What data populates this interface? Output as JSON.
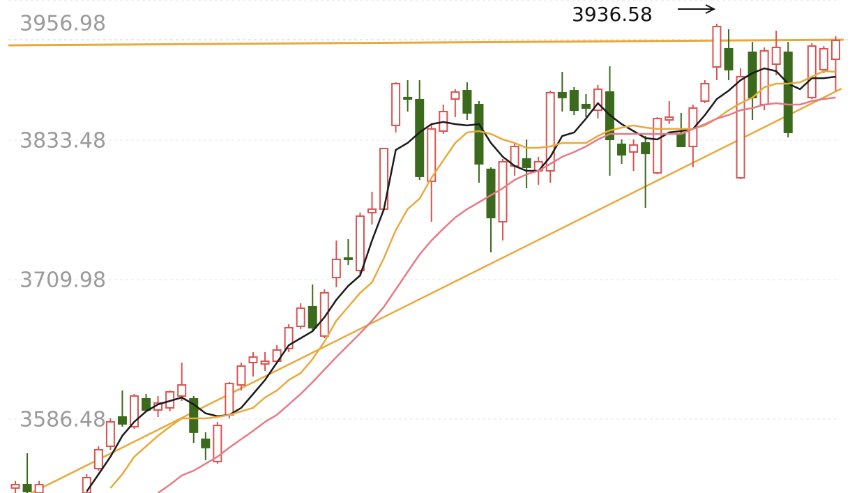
{
  "chart_data": {
    "type": "candlestick",
    "categories": [
      null,
      null,
      null,
      null,
      null,
      null,
      null,
      null,
      null,
      null,
      null,
      null,
      null,
      null,
      null,
      null,
      null,
      null,
      null,
      null,
      null,
      null,
      null,
      null,
      null,
      null,
      null,
      null,
      null,
      null,
      null,
      null,
      null,
      null,
      null,
      null,
      null,
      null,
      null,
      null,
      null,
      null,
      null,
      null,
      null,
      null,
      null,
      null,
      null,
      null,
      null,
      null,
      null,
      null,
      null,
      null,
      null,
      null,
      null,
      null,
      null,
      null,
      null,
      null,
      null,
      null,
      null,
      null,
      null,
      null
    ],
    "open": [
      3525.4,
      3528.4,
      3521.0,
      null,
      null,
      null,
      3521.0,
      3542.6,
      3562.4,
      3588.3,
      3579.7,
      3604.4,
      3594.5,
      3596.4,
      3606.9,
      3604.4,
      3568.6,
      3548.8,
      3590.2,
      3616.7,
      3636.5,
      3635.3,
      3637.7,
      3648.9,
      3668.6,
      3685.9,
      3660.0,
      3711.8,
      3729.1,
      3718.0,
      3769.3,
      3772.4,
      3846.5,
      3871.2,
      3869.3,
      3797.1,
      3841.5,
      3869.9,
      3877.3,
      3865.0,
      3807.6,
      3761.2,
      3810.6,
      3816.8,
      3806.3,
      3806.3,
      3875.5,
      3877.3,
      3865.0,
      3860.0,
      3876.1,
      3829.8,
      3823.0,
      3831.0,
      3804.5,
      3851.4,
      3839.0,
      3827.9,
      3868.1,
      3898.3,
      3914.4,
      3800.1,
      3911.3,
      3865.0,
      3900.8,
      3911.3,
      null,
      3871.2,
      3895.9,
      3905.1
    ],
    "high": [
      3531.5,
      3556.2,
      3531.5,
      null,
      null,
      null,
      3537.7,
      3562.4,
      3587.1,
      3611.8,
      3608.7,
      3608.7,
      3606.9,
      3611.8,
      3636.5,
      3606.9,
      3574.8,
      3584.0,
      3619.2,
      3636.5,
      3645.8,
      3645.8,
      3651.9,
      3670.5,
      3689.0,
      3705.7,
      3701.3,
      3744.6,
      3745.8,
      3769.3,
      3787.8,
      3826.7,
      3884.7,
      3886.6,
      3886.6,
      3846.5,
      3865.0,
      3878.6,
      3884.7,
      3868.1,
      3809.4,
      3816.8,
      3831.0,
      3834.1,
      3818.7,
      3877.3,
      3894.0,
      3880.4,
      3874.2,
      3882.3,
      3898.9,
      3834.1,
      3834.1,
      3837.2,
      3853.9,
      3868.1,
      3857.6,
      3865.0,
      3886.6,
      3936.58,
      3931.7,
      3897.1,
      3920.5,
      3915.6,
      3930.4,
      3920.5,
      null,
      3919.3,
      3916.8,
      3925.5
    ],
    "low": [
      3521.0,
      3521.0,
      3521.0,
      null,
      null,
      null,
      3521.0,
      3540.8,
      3559.3,
      3579.7,
      3577.8,
      3593.3,
      3588.3,
      3593.3,
      3602.5,
      3565.5,
      3550.1,
      3546.9,
      3587.1,
      3611.8,
      3624.2,
      3629.1,
      3636.5,
      3645.8,
      3666.1,
      3664.3,
      3658.1,
      3703.2,
      3722.9,
      3713.7,
      3758.8,
      3771.1,
      3840.3,
      3858.8,
      3798.3,
      3761.2,
      3839.0,
      3853.9,
      3851.4,
      3795.8,
      3734.1,
      3744.6,
      3802.0,
      3790.9,
      3794.0,
      3795.8,
      3858.8,
      3855.7,
      3853.9,
      3852.6,
      3802.0,
      3812.5,
      3806.3,
      3773.6,
      3803.2,
      3847.7,
      3827.9,
      3809.4,
      3866.2,
      3886.6,
      3886.6,
      3798.9,
      3851.4,
      3860.0,
      3890.9,
      3835.9,
      null,
      3869.9,
      3892.8,
      3877.3
    ],
    "close": [
      3528.4,
      3522.3,
      3528.4,
      null,
      null,
      null,
      3534.6,
      3559.3,
      3584.0,
      3582.2,
      3606.9,
      3594.5,
      3600.7,
      3610.6,
      3616.7,
      3574.8,
      3561.2,
      3580.9,
      3618.0,
      3633.4,
      3641.4,
      3637.7,
      3647.6,
      3667.4,
      3684.7,
      3667.4,
      3698.3,
      3727.9,
      3727.9,
      3766.2,
      3772.4,
      3826.1,
      3883.5,
      3869.9,
      3801.4,
      3843.4,
      3858.8,
      3876.1,
      3857.6,
      3812.5,
      3764.9,
      3814.3,
      3827.9,
      3809.4,
      3814.3,
      3875.5,
      3871.2,
      3860.0,
      3861.9,
      3878.6,
      3834.1,
      3820.5,
      3829.2,
      3821.7,
      3852.6,
      3853.9,
      3827.9,
      3861.9,
      3883.5,
      3934.1,
      3895.9,
      3889.7,
      3871.2,
      3912.5,
      3915.6,
      3840.3,
      null,
      3916.8,
      3914.4,
      3921.8
    ],
    "up_color": "#d9534f",
    "down_color": "#3b6a1c",
    "lines": [
      {
        "color": "#1a1a1a",
        "values": [
          null,
          null,
          null,
          null,
          null,
          null,
          3522.3,
          3537.7,
          3553.1,
          3571.7,
          3584.0,
          3593.3,
          3599.5,
          3602.5,
          3605.6,
          3599.5,
          3591.6,
          3589.0,
          3590.2,
          3596.4,
          3608.7,
          3621.1,
          3636.5,
          3651.9,
          3658.1,
          3664.3,
          3676.6,
          3692.1,
          3704.4,
          3713.7,
          3744.6,
          3772.4,
          3824.8,
          3831.0,
          3840.3,
          3847.7,
          3849.6,
          3847.7,
          3846.5,
          3847.7,
          3831.0,
          3818.7,
          3810.6,
          3806.3,
          3806.3,
          3818.7,
          3837.2,
          3840.3,
          3852.6,
          3866.2,
          3855.7,
          3847.7,
          3841.5,
          3835.3,
          3834.1,
          3840.3,
          3841.5,
          3843.4,
          3855.7,
          3869.9,
          3877.3,
          3886.6,
          3892.8,
          3897.1,
          3894.6,
          3883.5,
          3878.6,
          3888.4,
          3888.4,
          3889.7
        ]
      },
      {
        "color": "#e8a93a",
        "values": [
          null,
          null,
          null,
          null,
          null,
          null,
          null,
          null,
          3525.4,
          3537.7,
          3553.1,
          3562.4,
          3571.7,
          3579.7,
          3587.1,
          3587.1,
          3587.1,
          3588.3,
          3590.2,
          3593.3,
          3596.4,
          3605.6,
          3611.8,
          3621.1,
          3627.2,
          3639.6,
          3655.0,
          3673.6,
          3685.9,
          3698.3,
          3707.5,
          3729.1,
          3753.8,
          3772.4,
          3781.6,
          3800.1,
          3815.6,
          3831.0,
          3840.3,
          3841.5,
          3839.0,
          3834.1,
          3831.0,
          3826.7,
          3826.7,
          3827.9,
          3831.0,
          3831.0,
          3831.0,
          3837.2,
          3842.1,
          3844.6,
          3846.5,
          3844.6,
          3843.4,
          3843.4,
          3843.4,
          3843.4,
          3846.5,
          3852.6,
          3860.0,
          3866.2,
          3871.2,
          3880.4,
          3883.5,
          3883.5,
          3884.7,
          3889.7,
          3894.6,
          3894.0
        ]
      },
      {
        "color": "#e67a86",
        "values": [
          null,
          null,
          null,
          null,
          null,
          null,
          null,
          null,
          null,
          null,
          null,
          null,
          3521.0,
          3528.4,
          3536.5,
          3540.8,
          3546.9,
          3553.1,
          3561.2,
          3568.6,
          3576.0,
          3584.0,
          3590.2,
          3599.5,
          3608.7,
          3619.2,
          3630.3,
          3641.4,
          3651.9,
          3662.4,
          3673.6,
          3685.9,
          3701.3,
          3716.8,
          3732.2,
          3744.6,
          3755.1,
          3764.9,
          3772.4,
          3778.5,
          3784.7,
          3790.9,
          3798.3,
          3803.2,
          3806.3,
          3812.5,
          3818.7,
          3823.0,
          3827.9,
          3834.1,
          3839.0,
          3839.0,
          3839.0,
          3839.0,
          3839.0,
          3839.0,
          3839.0,
          3843.4,
          3847.7,
          3852.6,
          3855.7,
          3860.0,
          3861.9,
          3865.0,
          3866.2,
          3865.0,
          3865.0,
          3868.1,
          3869.9,
          3871.2
        ]
      }
    ],
    "ylim": [
      3521.0,
      3957.6
    ],
    "yticks": [
      3586.48,
      3709.98,
      3833.48,
      3956.98
    ],
    "grid": true,
    "annotation": "3936.58"
  }
}
